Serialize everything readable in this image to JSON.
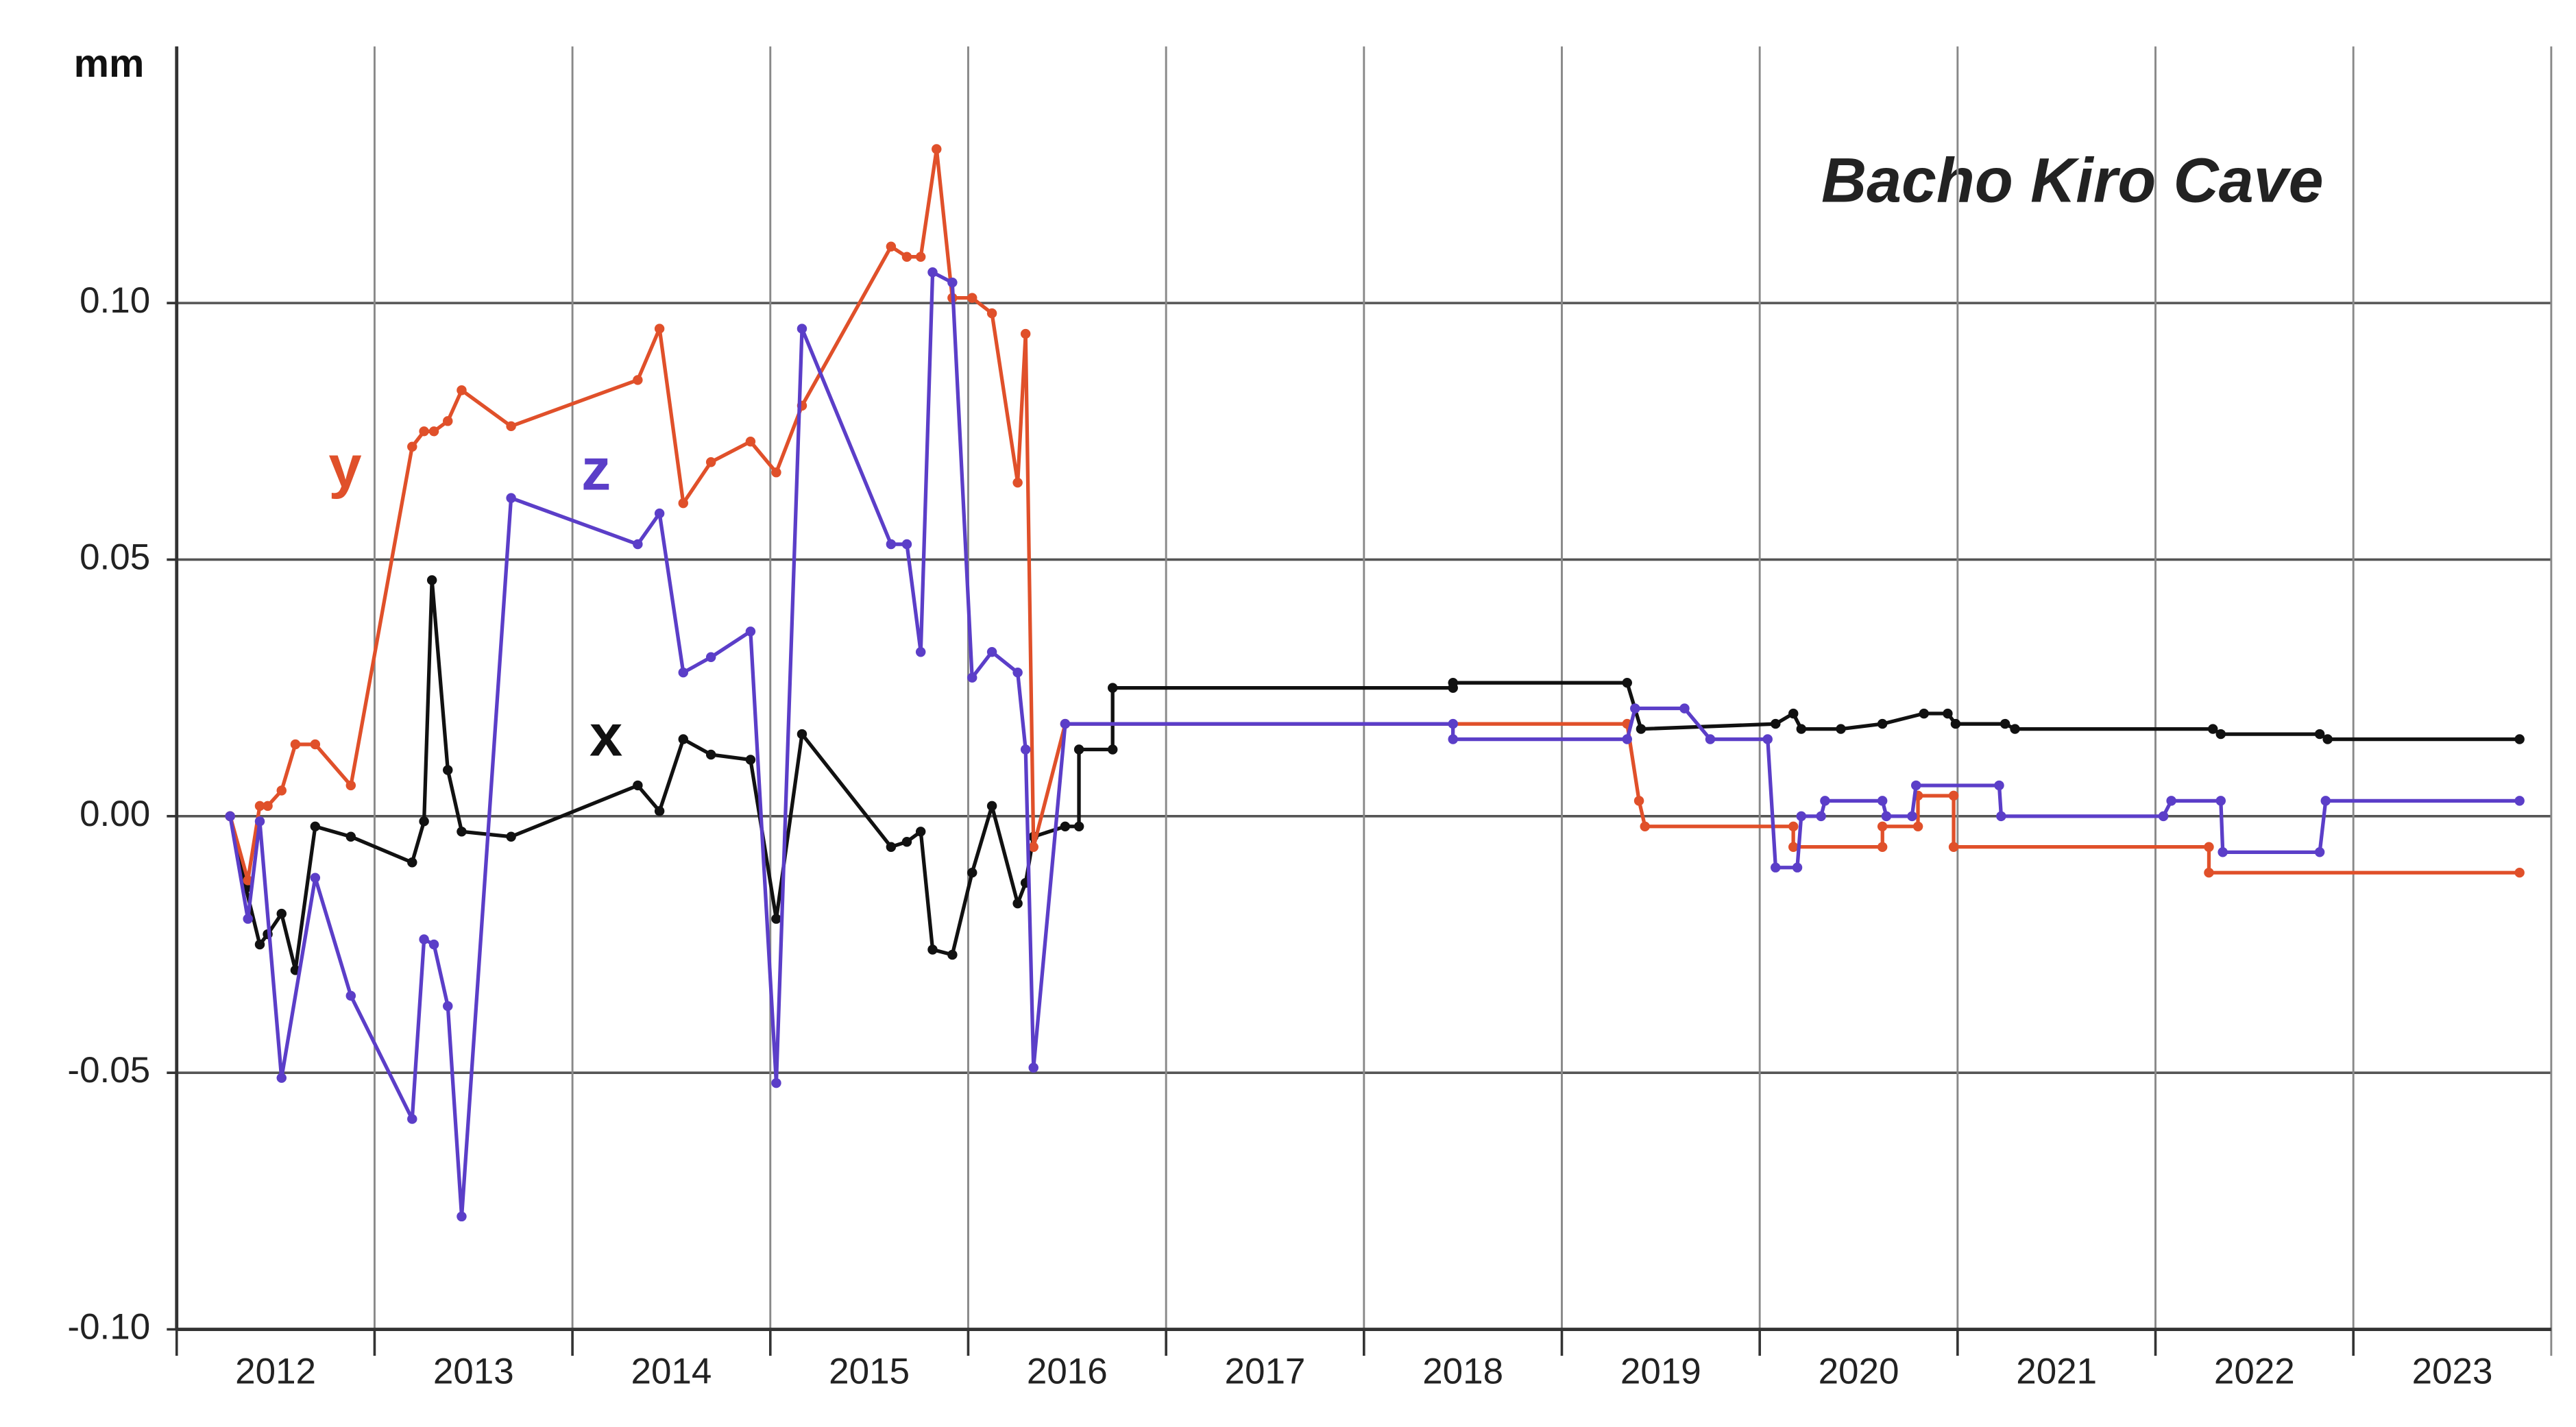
{
  "chart_data": {
    "type": "line",
    "title": "Bacho Kiro Cave",
    "y_label": "mm",
    "xlim": [
      2012,
      2024
    ],
    "xticks": [
      {
        "value": 2012,
        "label": "2012"
      },
      {
        "value": 2013,
        "label": "2013"
      },
      {
        "value": 2014,
        "label": "2014"
      },
      {
        "value": 2015,
        "label": "2015"
      },
      {
        "value": 2016,
        "label": "2016"
      },
      {
        "value": 2017,
        "label": "2017"
      },
      {
        "value": 2018,
        "label": "2018"
      },
      {
        "value": 2019,
        "label": "2019"
      },
      {
        "value": 2020,
        "label": "2020"
      },
      {
        "value": 2021,
        "label": "2021"
      },
      {
        "value": 2022,
        "label": "2022"
      },
      {
        "value": 2023,
        "label": "2023"
      }
    ],
    "ylim": [
      -0.1,
      0.15
    ],
    "yticks": [
      {
        "value": -0.1,
        "label": "-0.10"
      },
      -0.05,
      {
        "value": 0,
        "label": "0.00"
      },
      0.05,
      {
        "value": 0.1,
        "label": "0.10"
      }
    ],
    "grid": true,
    "series": [
      {
        "name": "x",
        "color": "#111111",
        "x": [
          2012.27,
          2012.35,
          2012.42,
          2012.46,
          2012.53,
          2012.6,
          2012.7,
          2012.88,
          2013.19,
          2013.25,
          2013.29,
          2013.37,
          2013.44,
          2013.69,
          2014.33,
          2014.44,
          2014.56,
          2014.7,
          2014.9,
          2015.03,
          2015.16,
          2015.61,
          2015.69,
          2015.76,
          2015.82,
          2015.92,
          2016.02,
          2016.12,
          2016.25,
          2016.29,
          2016.33,
          2016.49,
          2016.56,
          2016.56,
          2016.73,
          2016.73,
          2018.45,
          2018.45,
          2019.33,
          2019.4,
          2020.08,
          2020.17,
          2020.21,
          2020.41,
          2020.62,
          2020.83,
          2020.95,
          2020.99,
          2021.24,
          2021.29,
          2022.29,
          2022.33,
          2022.83,
          2022.87,
          2023.84
        ],
        "values": [
          0,
          -0.014,
          -0.025,
          -0.023,
          -0.019,
          -0.03,
          -0.002,
          -0.004,
          -0.009,
          -0.001,
          0.046,
          0.009,
          -0.003,
          -0.004,
          0.006,
          0.001,
          0.015,
          0.012,
          0.011,
          -0.02,
          0.016,
          -0.006,
          -0.005,
          -0.003,
          -0.026,
          -0.027,
          -0.011,
          0.002,
          -0.017,
          -0.013,
          -0.004,
          -0.002,
          -0.002,
          0.013,
          0.013,
          0.025,
          0.025,
          0.026,
          0.026,
          0.017,
          0.018,
          0.02,
          0.017,
          0.017,
          0.018,
          0.02,
          0.02,
          0.018,
          0.018,
          0.017,
          0.017,
          0.016,
          0.016,
          0.015,
          0.015
        ]
      },
      {
        "name": "y",
        "color": "#e0502a",
        "x": [
          2012.27,
          2012.36,
          2012.42,
          2012.46,
          2012.53,
          2012.6,
          2012.7,
          2012.88,
          2013.19,
          2013.25,
          2013.3,
          2013.37,
          2013.44,
          2013.69,
          2014.33,
          2014.44,
          2014.56,
          2014.7,
          2014.9,
          2015.03,
          2015.16,
          2015.61,
          2015.69,
          2015.76,
          2015.84,
          2015.92,
          2016.02,
          2016.12,
          2016.25,
          2016.29,
          2016.33,
          2016.49,
          2019.33,
          2019.39,
          2019.42,
          2020.17,
          2020.17,
          2020.62,
          2020.62,
          2020.8,
          2020.8,
          2020.98,
          2020.98,
          2022.27,
          2022.27,
          2023.84
        ],
        "values": [
          0,
          -0.0125,
          0.002,
          0.002,
          0.005,
          0.014,
          0.014,
          0.006,
          0.072,
          0.075,
          0.075,
          0.077,
          0.083,
          0.076,
          0.085,
          0.095,
          0.061,
          0.069,
          0.073,
          0.067,
          0.08,
          0.111,
          0.109,
          0.109,
          0.13,
          0.101,
          0.101,
          0.098,
          0.065,
          0.094,
          -0.006,
          0.018,
          0.018,
          0.003,
          -0.002,
          -0.002,
          -0.006,
          -0.006,
          -0.002,
          -0.002,
          0.004,
          0.004,
          -0.006,
          -0.006,
          -0.011,
          -0.011
        ]
      },
      {
        "name": "z",
        "color": "#5b3ec8",
        "x": [
          2012.27,
          2012.36,
          2012.42,
          2012.53,
          2012.7,
          2012.88,
          2013.19,
          2013.25,
          2013.3,
          2013.37,
          2013.44,
          2013.69,
          2014.33,
          2014.44,
          2014.56,
          2014.7,
          2014.9,
          2015.03,
          2015.16,
          2015.61,
          2015.69,
          2015.76,
          2015.82,
          2015.92,
          2016.02,
          2016.12,
          2016.25,
          2016.29,
          2016.33,
          2016.49,
          2018.45,
          2018.45,
          2019.33,
          2019.37,
          2019.62,
          2019.75,
          2020.04,
          2020.08,
          2020.19,
          2020.21,
          2020.31,
          2020.33,
          2020.62,
          2020.64,
          2020.77,
          2020.79,
          2021.21,
          2021.22,
          2022.04,
          2022.08,
          2022.33,
          2022.34,
          2022.83,
          2022.86,
          2023.84
        ],
        "values": [
          0,
          -0.02,
          -0.001,
          -0.051,
          -0.012,
          -0.035,
          -0.059,
          -0.024,
          -0.025,
          -0.037,
          -0.078,
          0.062,
          0.053,
          0.059,
          0.028,
          0.031,
          0.036,
          -0.052,
          0.095,
          0.053,
          0.053,
          0.032,
          0.106,
          0.104,
          0.027,
          0.032,
          0.028,
          0.013,
          -0.049,
          0.018,
          0.018,
          0.015,
          0.015,
          0.021,
          0.021,
          0.015,
          0.015,
          -0.01,
          -0.01,
          0,
          0,
          0.003,
          0.003,
          0,
          0,
          0.006,
          0.006,
          0,
          0,
          0.003,
          0.003,
          -0.007,
          -0.007,
          0.003,
          0.003
        ]
      }
    ]
  }
}
